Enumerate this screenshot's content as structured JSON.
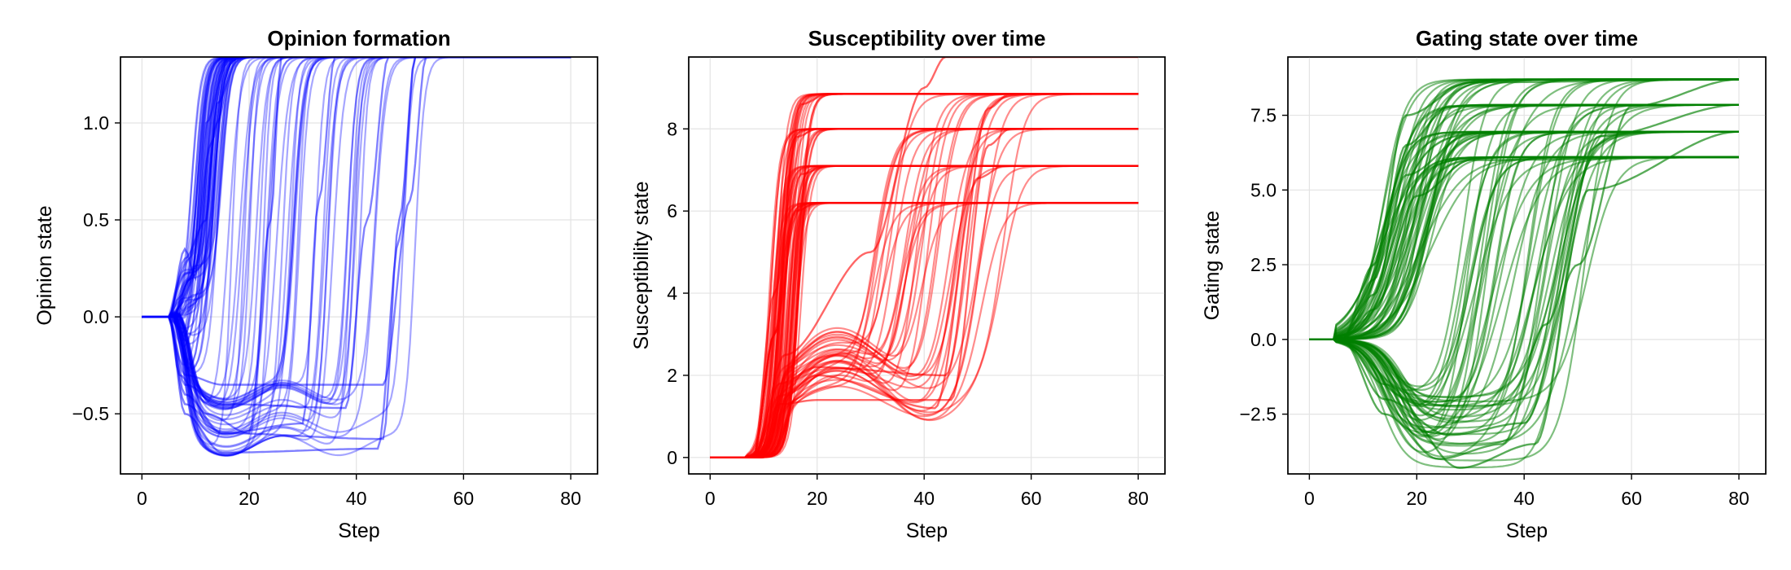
{
  "chart_data": [
    {
      "type": "line",
      "title": "Opinion formation",
      "xlabel": "Step",
      "ylabel": "Opinion state",
      "xlim": [
        -4,
        85
      ],
      "ylim": [
        -0.81,
        1.34
      ],
      "xticks": [
        0,
        20,
        40,
        60,
        80
      ],
      "yticks": [
        -0.5,
        0.0,
        0.5,
        1.0
      ],
      "tick_labels_x": [
        "0",
        "20",
        "40",
        "60",
        "80"
      ],
      "tick_labels_y": [
        "−0.5",
        "0.0",
        "0.5",
        "1.0"
      ],
      "grid": true,
      "color": "#0000ff",
      "line_alpha": 0.35,
      "n_lines": 100,
      "x_range": [
        0,
        80
      ],
      "series": [
        {
          "x": [
            0,
            5,
            7,
            9,
            13,
            16,
            20,
            80
          ],
          "y": [
            0,
            0,
            0.1,
            0.2,
            0.9,
            1.34,
            1.34,
            1.34
          ]
        },
        {
          "x": [
            0,
            5,
            8,
            12,
            14,
            18,
            80
          ],
          "y": [
            0,
            0,
            0.3,
            0.5,
            1.1,
            1.34,
            1.34
          ]
        },
        {
          "x": [
            0,
            5,
            8,
            10,
            14,
            17,
            80
          ],
          "y": [
            0,
            0,
            -0.1,
            0.1,
            1.0,
            1.34,
            1.34
          ]
        },
        {
          "x": [
            0,
            5,
            8,
            10,
            12,
            16,
            80
          ],
          "y": [
            0,
            0,
            0.35,
            0.2,
            1.0,
            1.34,
            1.34
          ]
        },
        {
          "x": [
            0,
            5,
            7,
            12,
            20,
            24,
            26,
            80
          ],
          "y": [
            0,
            0,
            -0.3,
            -0.5,
            -0.6,
            0.5,
            1.34,
            1.34
          ]
        },
        {
          "x": [
            0,
            5,
            8,
            15,
            30,
            33,
            36,
            80
          ],
          "y": [
            0,
            0,
            -0.4,
            -0.6,
            -0.55,
            0.6,
            1.34,
            1.34
          ]
        },
        {
          "x": [
            0,
            5,
            8,
            15,
            38,
            42,
            46,
            80
          ],
          "y": [
            0,
            0,
            -0.35,
            -0.45,
            -0.47,
            0.5,
            1.34,
            1.34
          ]
        },
        {
          "x": [
            0,
            5,
            8,
            15,
            45,
            48,
            51,
            80
          ],
          "y": [
            0,
            0,
            -0.45,
            -0.6,
            -0.63,
            0.5,
            1.34,
            1.34
          ]
        },
        {
          "x": [
            0,
            5,
            8,
            15,
            45,
            50,
            53,
            80
          ],
          "y": [
            0,
            0,
            -0.3,
            -0.35,
            -0.35,
            0.6,
            1.34,
            1.34
          ]
        },
        {
          "x": [
            0,
            5,
            8,
            15,
            44,
            48,
            51,
            80
          ],
          "y": [
            0,
            0,
            -0.5,
            -0.7,
            -0.68,
            0.4,
            1.34,
            1.34
          ]
        }
      ]
    },
    {
      "type": "line",
      "title": "Susceptibility over time",
      "xlabel": "Step",
      "ylabel": "Susceptibility state",
      "xlim": [
        -4,
        85
      ],
      "ylim": [
        -0.4,
        9.75
      ],
      "xticks": [
        0,
        20,
        40,
        60,
        80
      ],
      "yticks": [
        0,
        2,
        4,
        6,
        8
      ],
      "tick_labels_x": [
        "0",
        "20",
        "40",
        "60",
        "80"
      ],
      "tick_labels_y": [
        "0",
        "2",
        "4",
        "6",
        "8"
      ],
      "grid": true,
      "color": "#ff0000",
      "line_alpha": 0.45,
      "n_lines": 100,
      "x_range": [
        0,
        80
      ],
      "plateaus": [
        6.2,
        7.1,
        8.0,
        8.85
      ],
      "series": [
        {
          "x": [
            0,
            8,
            12,
            16,
            20,
            80
          ],
          "y": [
            0,
            0,
            3,
            7.8,
            8.0,
            8.0
          ]
        },
        {
          "x": [
            0,
            8,
            12,
            17,
            22,
            80
          ],
          "y": [
            0,
            0,
            4,
            8.6,
            8.85,
            8.85
          ]
        },
        {
          "x": [
            0,
            8,
            12,
            17,
            22,
            80
          ],
          "y": [
            0,
            0,
            3,
            6.9,
            7.1,
            7.1
          ]
        },
        {
          "x": [
            0,
            8,
            12,
            16,
            20,
            80
          ],
          "y": [
            0,
            0,
            3,
            6.0,
            6.2,
            6.2
          ]
        },
        {
          "x": [
            0,
            8,
            13,
            20,
            45,
            52,
            56,
            80
          ],
          "y": [
            0,
            0,
            1.3,
            1.4,
            1.4,
            7.6,
            8.0,
            8.0
          ]
        },
        {
          "x": [
            0,
            8,
            13,
            20,
            44,
            52,
            56,
            80
          ],
          "y": [
            0,
            0,
            1.8,
            2.2,
            2.0,
            8.5,
            8.85,
            8.85
          ]
        },
        {
          "x": [
            0,
            8,
            13,
            20,
            42,
            50,
            55,
            80
          ],
          "y": [
            0,
            0,
            1.5,
            2.0,
            1.2,
            6.8,
            7.1,
            7.1
          ]
        },
        {
          "x": [
            0,
            8,
            14,
            30,
            40,
            44,
            80
          ],
          "y": [
            0,
            0,
            2.5,
            5.0,
            9.0,
            9.75,
            9.75
          ]
        }
      ]
    },
    {
      "type": "line",
      "title": "Gating state over time",
      "xlabel": "Step",
      "ylabel": "Gating state",
      "xlim": [
        -4,
        85
      ],
      "ylim": [
        -4.5,
        9.45
      ],
      "xticks": [
        0,
        20,
        40,
        60,
        80
      ],
      "yticks": [
        -2.5,
        0.0,
        2.5,
        5.0,
        7.5
      ],
      "tick_labels_x": [
        "0",
        "20",
        "40",
        "60",
        "80"
      ],
      "tick_labels_y": [
        "−2.5",
        "0.0",
        "2.5",
        "5.0",
        "7.5"
      ],
      "grid": true,
      "color": "#008000",
      "line_alpha": 0.5,
      "n_lines": 100,
      "x_range": [
        0,
        80
      ],
      "plateaus": [
        6.1,
        6.95,
        7.85,
        8.7
      ],
      "series": [
        {
          "x": [
            0,
            6,
            12,
            18,
            26,
            80
          ],
          "y": [
            0,
            0,
            2,
            6.5,
            7.8,
            7.85
          ]
        },
        {
          "x": [
            0,
            6,
            12,
            18,
            30,
            80
          ],
          "y": [
            0,
            0,
            2.5,
            7.5,
            8.6,
            8.7
          ]
        },
        {
          "x": [
            0,
            6,
            12,
            18,
            30,
            80
          ],
          "y": [
            0,
            0,
            1.5,
            5.5,
            6.9,
            6.95
          ]
        },
        {
          "x": [
            0,
            6,
            12,
            20,
            30,
            80
          ],
          "y": [
            0,
            0,
            1.0,
            4.8,
            6.0,
            6.1
          ]
        },
        {
          "x": [
            0,
            6,
            14,
            24,
            36,
            44,
            54,
            80
          ],
          "y": [
            0,
            0,
            -2.5,
            -4.0,
            -3.5,
            0.5,
            6.8,
            7.85
          ]
        },
        {
          "x": [
            0,
            6,
            14,
            26,
            40,
            50,
            60,
            80
          ],
          "y": [
            0,
            0,
            -2.0,
            -3.2,
            -2.8,
            2.5,
            7.8,
            8.7
          ]
        },
        {
          "x": [
            0,
            6,
            14,
            28,
            42,
            52,
            80
          ],
          "y": [
            0,
            0,
            -1.5,
            -4.3,
            -3.5,
            5.0,
            6.95
          ]
        }
      ]
    }
  ]
}
